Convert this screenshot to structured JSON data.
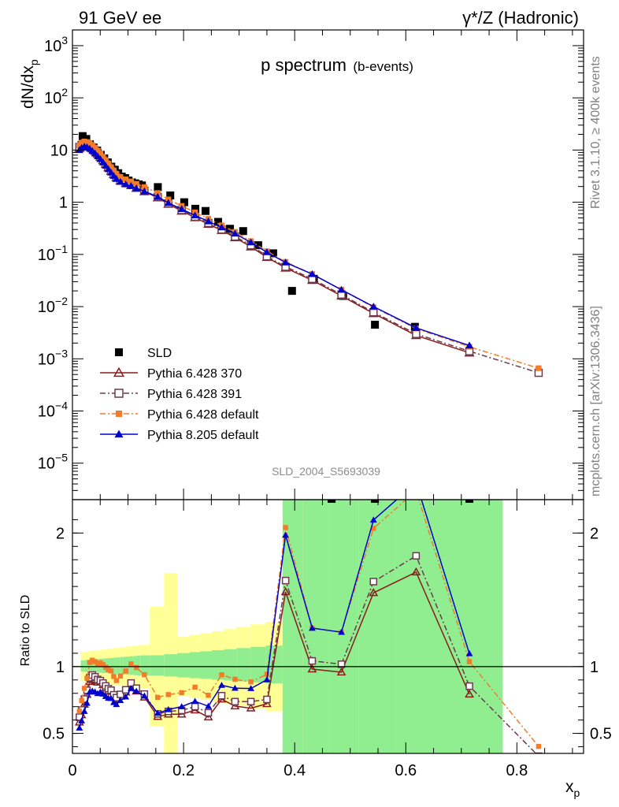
{
  "header": {
    "left_title": "91 GeV ee",
    "right_title": "γ*/Z (Hadronic)"
  },
  "side_labels": {
    "rivet": "Rivet 3.1.10, ≥ 400k events",
    "mcplots": "mcplots.cern.ch [arXiv:1306.3436]"
  },
  "chart_data": [
    {
      "type": "scatter",
      "panel": "main",
      "title_main": "p spectrum",
      "title_sub": "(b-events)",
      "ylabel": "dN/dx",
      "ylabel_sub": "p",
      "yscale": "log",
      "ylim": [
        2e-06,
        2000
      ],
      "xlim": [
        0,
        0.92
      ],
      "y_ticks": [
        {
          "v": 1000,
          "base": "10",
          "exp": "3"
        },
        {
          "v": 100,
          "base": "10",
          "exp": "2"
        },
        {
          "v": 10,
          "base": "10",
          "exp": ""
        },
        {
          "v": 1,
          "base": "1",
          "exp": ""
        },
        {
          "v": 0.1,
          "base": "10",
          "exp": "−1"
        },
        {
          "v": 0.01,
          "base": "10",
          "exp": "−2"
        },
        {
          "v": 0.001,
          "base": "10",
          "exp": "−3"
        },
        {
          "v": 0.0001,
          "base": "10",
          "exp": "−4"
        },
        {
          "v": 1e-05,
          "base": "10",
          "exp": "−5"
        }
      ],
      "analysis_label": "SLD_2004_S5693039",
      "series": [
        {
          "name": "SLD",
          "color": "#000000",
          "marker": "square-filled",
          "line": "none",
          "x": [
            0.0183,
            0.0249,
            0.0314,
            0.038,
            0.0444,
            0.0509,
            0.0572,
            0.0636,
            0.0699,
            0.0762,
            0.0824,
            0.0887,
            0.0948,
            0.101,
            0.1071,
            0.1131,
            0.1192,
            0.1251,
            0.1537,
            0.1761,
            0.2012,
            0.2212,
            0.2396,
            0.2622,
            0.2836,
            0.3073,
            0.3344,
            0.3613,
            0.3952,
            0.4346,
            0.4872,
            0.5445,
            0.6164
          ],
          "values": [
            18.5,
            16.3,
            12.9,
            11.2,
            9.8,
            8.1,
            6.9,
            5.8,
            4.8,
            4.2,
            3.6,
            3.1,
            2.9,
            2.6,
            2.4,
            2.3,
            2.2,
            2.1,
            1.95,
            1.35,
            1.0,
            0.75,
            0.68,
            0.42,
            0.31,
            0.28,
            0.15,
            0.105,
            0.02,
            0.034,
            0.016,
            0.0045,
            0.0041
          ]
        },
        {
          "name": "Pythia 6.428 370",
          "color": "#8b1a1a",
          "marker": "triangle-open",
          "line": "solid",
          "x": [
            0.0125,
            0.0165,
            0.0214,
            0.0262,
            0.031,
            0.0358,
            0.0406,
            0.0454,
            0.0502,
            0.055,
            0.0598,
            0.0646,
            0.0695,
            0.0743,
            0.0791,
            0.0863,
            0.0959,
            0.1055,
            0.1151,
            0.1295,
            0.1535,
            0.1726,
            0.1966,
            0.2206,
            0.2446,
            0.2686,
            0.2926,
            0.3212,
            0.35,
            0.3836,
            0.4315,
            0.4842,
            0.5419,
            0.6186,
            0.7145
          ],
          "values": [
            10.8,
            11.8,
            12.5,
            12.3,
            11.6,
            10.6,
            9.5,
            8.4,
            7.3,
            6.3,
            5.4,
            4.6,
            3.95,
            3.4,
            2.95,
            2.55,
            2.3,
            2.1,
            1.85,
            1.6,
            1.22,
            0.92,
            0.68,
            0.51,
            0.38,
            0.29,
            0.21,
            0.14,
            0.088,
            0.055,
            0.032,
            0.016,
            0.0074,
            0.0028,
            0.0013
          ]
        },
        {
          "name": "Pythia 6.428 391",
          "color": "#6b3a4e",
          "marker": "square-open",
          "line": "dashdot",
          "x": [
            0.0125,
            0.0165,
            0.0214,
            0.0262,
            0.031,
            0.0358,
            0.0406,
            0.0454,
            0.0502,
            0.055,
            0.0598,
            0.0646,
            0.0695,
            0.0743,
            0.0791,
            0.0863,
            0.0959,
            0.1055,
            0.1151,
            0.1295,
            0.1535,
            0.1726,
            0.1966,
            0.2206,
            0.2446,
            0.2686,
            0.2926,
            0.3212,
            0.35,
            0.3836,
            0.4315,
            0.4842,
            0.5419,
            0.6186,
            0.7145,
            0.8391
          ],
          "values": [
            11.5,
            12.5,
            13.2,
            12.8,
            12.0,
            11.0,
            9.8,
            8.6,
            7.4,
            6.4,
            5.5,
            4.7,
            4.0,
            3.45,
            3.0,
            2.6,
            2.35,
            2.15,
            1.9,
            1.65,
            1.26,
            0.95,
            0.71,
            0.53,
            0.4,
            0.3,
            0.22,
            0.15,
            0.092,
            0.058,
            0.034,
            0.017,
            0.0078,
            0.003,
            0.0014,
            0.00054
          ]
        },
        {
          "name": "Pythia 6.428 default",
          "color": "#f27c2a",
          "marker": "square-filled-small",
          "line": "dashdot",
          "x": [
            0.0125,
            0.0165,
            0.0214,
            0.0262,
            0.031,
            0.0358,
            0.0406,
            0.0454,
            0.0502,
            0.055,
            0.0598,
            0.0646,
            0.0695,
            0.0743,
            0.0791,
            0.0863,
            0.0959,
            0.1055,
            0.1151,
            0.1295,
            0.1535,
            0.1726,
            0.1966,
            0.2206,
            0.2446,
            0.2686,
            0.2926,
            0.3212,
            0.35,
            0.3836,
            0.4315,
            0.4842,
            0.5419,
            0.6186,
            0.7145,
            0.8391
          ],
          "values": [
            12.3,
            13.8,
            14.6,
            14.2,
            13.5,
            12.3,
            11.0,
            9.7,
            8.5,
            7.4,
            6.4,
            5.5,
            4.7,
            4.05,
            3.5,
            3.05,
            2.75,
            2.5,
            2.25,
            1.95,
            1.5,
            1.13,
            0.85,
            0.64,
            0.48,
            0.36,
            0.27,
            0.18,
            0.115,
            0.072,
            0.042,
            0.021,
            0.0097,
            0.0038,
            0.0017,
            0.00066
          ]
        },
        {
          "name": "Pythia 8.205 default",
          "color": "#0000cd",
          "marker": "triangle-filled",
          "line": "solid",
          "x": [
            0.0125,
            0.0165,
            0.0214,
            0.0262,
            0.031,
            0.0358,
            0.0406,
            0.0454,
            0.0502,
            0.055,
            0.0598,
            0.0646,
            0.0695,
            0.0743,
            0.0791,
            0.0863,
            0.0959,
            0.1055,
            0.1151,
            0.1295,
            0.1535,
            0.1726,
            0.1966,
            0.2206,
            0.2446,
            0.2686,
            0.2926,
            0.3212,
            0.35,
            0.3836,
            0.4315,
            0.4842,
            0.5419,
            0.6186,
            0.7145
          ],
          "values": [
            10.0,
            11.0,
            11.6,
            11.3,
            10.6,
            9.6,
            8.6,
            7.6,
            6.7,
            5.8,
            5.0,
            4.3,
            3.7,
            3.2,
            2.8,
            2.45,
            2.2,
            2.05,
            1.85,
            1.62,
            1.27,
            0.97,
            0.74,
            0.56,
            0.43,
            0.33,
            0.25,
            0.17,
            0.11,
            0.07,
            0.042,
            0.021,
            0.01,
            0.0039,
            0.0018
          ]
        }
      ]
    },
    {
      "type": "scatter",
      "panel": "ratio",
      "ylabel": "Ratio to SLD",
      "xlabel": "x",
      "xlabel_sub": "p",
      "ylim": [
        0.35,
        2.25
      ],
      "xlim": [
        0,
        0.92
      ],
      "x_ticks": [
        "0",
        "0.2",
        "0.4",
        "0.6",
        "0.8"
      ],
      "x_tick_values": [
        0,
        0.2,
        0.4,
        0.6,
        0.8
      ],
      "y_ticks": [
        "0.5",
        "1",
        "2"
      ],
      "y_tick_values": [
        0.5,
        1,
        2
      ],
      "reference_line": 1,
      "band_colors": {
        "inner": "#90ee90",
        "outer": "#ffff96"
      }
    }
  ]
}
